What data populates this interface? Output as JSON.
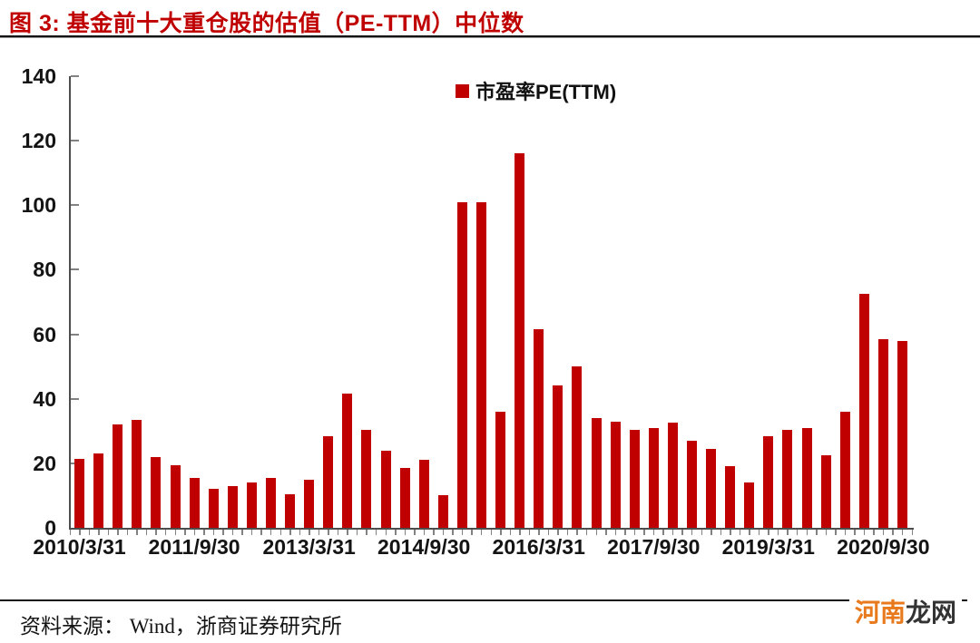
{
  "title": "图 3: 基金前十大重仓股的估值（PE-TTM）中位数",
  "legend": {
    "label": "市盈率PE(TTM)"
  },
  "footer": {
    "source": "资料来源： Wind，浙商证券研究所"
  },
  "watermark": {
    "part1": "河南",
    "part2": "龙网",
    "color1": "#e87a1d",
    "color2": "#333333"
  },
  "colors": {
    "bar": "#c00000",
    "title": "#c00000",
    "axis_line": "#4d4d4d",
    "tick": "#828282",
    "label_text": "#141414"
  },
  "chart_data": {
    "type": "bar",
    "title": "图 3: 基金前十大重仓股的估值（PE-TTM）中位数",
    "series_name": "市盈率PE(TTM)",
    "categories": [
      "2010/3/31",
      "2010/6/30",
      "2010/9/30",
      "2010/12/31",
      "2011/3/31",
      "2011/6/30",
      "2011/9/30",
      "2011/12/31",
      "2012/3/31",
      "2012/6/30",
      "2012/9/30",
      "2012/12/31",
      "2013/3/31",
      "2013/6/30",
      "2013/9/30",
      "2013/12/31",
      "2014/3/31",
      "2014/6/30",
      "2014/9/30",
      "2014/12/31",
      "2015/3/31",
      "2015/6/30",
      "2015/9/30",
      "2015/12/31",
      "2016/3/31",
      "2016/6/30",
      "2016/9/30",
      "2016/12/31",
      "2017/3/31",
      "2017/6/30",
      "2017/9/30",
      "2017/12/31",
      "2018/3/31",
      "2018/6/30",
      "2018/9/30",
      "2018/12/31",
      "2019/3/31",
      "2019/6/30",
      "2019/9/30",
      "2019/12/31",
      "2020/3/31",
      "2020/6/30",
      "2020/9/30",
      "2020/12/31"
    ],
    "values": [
      21.5,
      23,
      32,
      33.5,
      22,
      19.5,
      15.5,
      12,
      13,
      14,
      15.5,
      10.5,
      15,
      28.5,
      41.5,
      30.5,
      24,
      18.5,
      21,
      10,
      101,
      101,
      36,
      116,
      61.5,
      44,
      50,
      34,
      33,
      30.5,
      31,
      32.5,
      27,
      24.5,
      19,
      14,
      28.5,
      30.5,
      31,
      22.5,
      36,
      72.5,
      58.5,
      58
    ],
    "xlabel": "",
    "ylabel": "",
    "ylim": [
      0,
      140
    ],
    "y_ticks": [
      0,
      20,
      40,
      60,
      80,
      100,
      120,
      140
    ],
    "y_tick_labels": [
      "0",
      "20",
      "40",
      "60",
      "80",
      "100",
      "120",
      "140"
    ],
    "x_tick_label_indices": [
      0,
      6,
      12,
      18,
      24,
      30,
      36,
      42
    ],
    "x_tick_labels": [
      "2010/3/31",
      "2011/9/30",
      "2013/3/31",
      "2014/9/30",
      "2016/3/31",
      "2017/9/30",
      "2019/3/31",
      "2020/9/30"
    ],
    "grid": false,
    "legend_position": "top-center",
    "bar_color": "#c00000"
  }
}
